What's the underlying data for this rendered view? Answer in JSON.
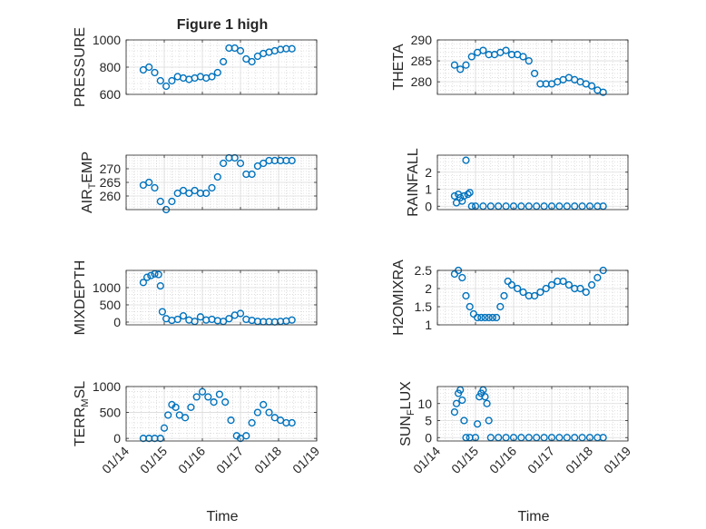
{
  "figure": {
    "title": "Figure 1 high",
    "xlabel": "Time",
    "marker_color": "#0072BD"
  },
  "chart_data": [
    {
      "type": "scatter",
      "ylabel": "PRESSURE",
      "ylabel_main": "PRESSURE",
      "ylim": [
        600,
        1000
      ],
      "yticks": [
        600,
        800,
        1000
      ],
      "xlim": [
        0,
        5
      ],
      "xticks": [
        0,
        1,
        2,
        3,
        4,
        5
      ],
      "xticklabels": [
        "01/14",
        "01/15",
        "01/16",
        "01/17",
        "01/18",
        "01/19"
      ],
      "x": [
        0.45,
        0.6,
        0.75,
        0.9,
        1.05,
        1.2,
        1.35,
        1.5,
        1.65,
        1.8,
        1.95,
        2.1,
        2.25,
        2.4,
        2.55,
        2.7,
        2.85,
        3.0,
        3.15,
        3.3,
        3.45,
        3.6,
        3.75,
        3.9,
        4.05,
        4.2,
        4.35
      ],
      "y": [
        780,
        800,
        760,
        700,
        660,
        700,
        730,
        720,
        710,
        720,
        730,
        720,
        730,
        760,
        840,
        940,
        940,
        920,
        860,
        840,
        880,
        900,
        910,
        920,
        930,
        935,
        935
      ]
    },
    {
      "type": "scatter",
      "ylabel": "THETA",
      "ylabel_main": "THETA",
      "ylim": [
        277,
        290
      ],
      "yticks": [
        280,
        285,
        290
      ],
      "xlim": [
        0,
        5
      ],
      "xticks": [
        0,
        1,
        2,
        3,
        4,
        5
      ],
      "xticklabels": [
        "01/14",
        "01/15",
        "01/16",
        "01/17",
        "01/18",
        "01/19"
      ],
      "x": [
        0.45,
        0.6,
        0.75,
        0.9,
        1.05,
        1.2,
        1.35,
        1.5,
        1.65,
        1.8,
        1.95,
        2.1,
        2.25,
        2.4,
        2.55,
        2.7,
        2.85,
        3.0,
        3.15,
        3.3,
        3.45,
        3.6,
        3.75,
        3.9,
        4.05,
        4.2,
        4.35
      ],
      "y": [
        284,
        283,
        284,
        286,
        287,
        287.5,
        286.5,
        286.5,
        287,
        287.5,
        286.5,
        286.5,
        286,
        285,
        282,
        279.5,
        279.5,
        279.5,
        280,
        280.5,
        281,
        280.5,
        280,
        279.5,
        279,
        278,
        277.5
      ]
    },
    {
      "type": "scatter",
      "ylabel": "AIR_TEMP",
      "ylabel_main": "AIR",
      "ylabel_sub": "T",
      "ylabel_rest": "EMP",
      "ylim": [
        255,
        275
      ],
      "yticks": [
        260,
        265,
        270
      ],
      "xlim": [
        0,
        5
      ],
      "xticks": [
        0,
        1,
        2,
        3,
        4,
        5
      ],
      "xticklabels": [
        "01/14",
        "01/15",
        "01/16",
        "01/17",
        "01/18",
        "01/19"
      ],
      "x": [
        0.45,
        0.6,
        0.75,
        0.9,
        1.05,
        1.2,
        1.35,
        1.5,
        1.65,
        1.8,
        1.95,
        2.1,
        2.25,
        2.4,
        2.55,
        2.7,
        2.85,
        3.0,
        3.15,
        3.3,
        3.45,
        3.6,
        3.75,
        3.9,
        4.05,
        4.2,
        4.35
      ],
      "y": [
        264,
        265,
        263,
        258,
        255,
        258,
        261,
        262,
        261,
        262,
        261,
        261,
        263,
        267,
        272,
        274,
        274,
        272,
        268,
        268,
        271,
        272,
        273,
        273,
        273,
        273,
        273
      ]
    },
    {
      "type": "scatter",
      "ylabel": "RAINFALL",
      "ylabel_main": "RAINFALL",
      "ylim": [
        -0.2,
        3
      ],
      "yticks": [
        0,
        1,
        2
      ],
      "xlim": [
        0,
        5
      ],
      "xticks": [
        0,
        1,
        2,
        3,
        4,
        5
      ],
      "xticklabels": [
        "01/14",
        "01/15",
        "01/16",
        "01/17",
        "01/18",
        "01/19"
      ],
      "x": [
        0.45,
        0.5,
        0.55,
        0.6,
        0.65,
        0.7,
        0.75,
        0.8,
        0.85,
        0.9,
        1.0,
        1.2,
        1.4,
        1.6,
        1.8,
        2.0,
        2.2,
        2.4,
        2.6,
        2.8,
        3.0,
        3.2,
        3.4,
        3.6,
        3.8,
        4.0,
        4.2,
        4.35
      ],
      "y": [
        0.6,
        0.2,
        0.7,
        0.5,
        0.3,
        0.6,
        2.7,
        0.7,
        0.8,
        0,
        0,
        0,
        0,
        0,
        0,
        0,
        0,
        0,
        0,
        0,
        0,
        0,
        0,
        0,
        0,
        0,
        0,
        0
      ]
    },
    {
      "type": "scatter",
      "ylabel": "MIXDEPTH",
      "ylabel_main": "MIXDEPTH",
      "ylim": [
        -80,
        1500
      ],
      "yticks": [
        0,
        500,
        1000
      ],
      "xlim": [
        0,
        5
      ],
      "xticks": [
        0,
        1,
        2,
        3,
        4,
        5
      ],
      "xticklabels": [
        "01/14",
        "01/15",
        "01/16",
        "01/17",
        "01/18",
        "01/19"
      ],
      "x": [
        0.45,
        0.55,
        0.65,
        0.75,
        0.85,
        0.9,
        0.95,
        1.05,
        1.2,
        1.35,
        1.5,
        1.65,
        1.8,
        1.95,
        2.1,
        2.25,
        2.4,
        2.55,
        2.7,
        2.85,
        3.0,
        3.15,
        3.3,
        3.45,
        3.6,
        3.75,
        3.9,
        4.05,
        4.2,
        4.35
      ],
      "y": [
        1150,
        1300,
        1350,
        1400,
        1380,
        1050,
        300,
        100,
        50,
        80,
        180,
        60,
        20,
        150,
        60,
        80,
        40,
        20,
        100,
        200,
        250,
        80,
        50,
        20,
        10,
        10,
        5,
        20,
        30,
        60
      ]
    },
    {
      "type": "scatter",
      "ylabel": "H2OMIXRA",
      "ylabel_main": "H2OMIXRA",
      "ylim": [
        1,
        2.5
      ],
      "yticks": [
        1,
        1.5,
        2,
        2.5
      ],
      "xlim": [
        0,
        5
      ],
      "xticks": [
        0,
        1,
        2,
        3,
        4,
        5
      ],
      "xticklabels": [
        "01/14",
        "01/15",
        "01/16",
        "01/17",
        "01/18",
        "01/19"
      ],
      "x": [
        0.45,
        0.55,
        0.65,
        0.75,
        0.85,
        0.95,
        1.05,
        1.15,
        1.25,
        1.35,
        1.45,
        1.55,
        1.65,
        1.75,
        1.85,
        1.95,
        2.1,
        2.25,
        2.4,
        2.55,
        2.7,
        2.85,
        3.0,
        3.15,
        3.3,
        3.45,
        3.6,
        3.75,
        3.9,
        4.05,
        4.2,
        4.35
      ],
      "y": [
        2.4,
        2.5,
        2.3,
        1.8,
        1.5,
        1.3,
        1.2,
        1.2,
        1.2,
        1.2,
        1.2,
        1.2,
        1.5,
        1.8,
        2.2,
        2.1,
        2.0,
        1.9,
        1.8,
        1.8,
        1.9,
        2.0,
        2.1,
        2.2,
        2.2,
        2.1,
        2.0,
        2.0,
        1.9,
        2.1,
        2.3,
        2.5
      ]
    },
    {
      "type": "scatter",
      "ylabel": "TERR_MSL",
      "ylabel_main": "TERR",
      "ylabel_sub": "M",
      "ylabel_rest": "SL",
      "ylim": [
        -50,
        1000
      ],
      "yticks": [
        0,
        500,
        1000
      ],
      "xlim": [
        0,
        5
      ],
      "xticks": [
        0,
        1,
        2,
        3,
        4,
        5
      ],
      "xticklabels": [
        "01/14",
        "01/15",
        "01/16",
        "01/17",
        "01/18",
        "01/19"
      ],
      "x": [
        0.45,
        0.6,
        0.75,
        0.9,
        1.0,
        1.1,
        1.2,
        1.3,
        1.4,
        1.55,
        1.7,
        1.85,
        2.0,
        2.15,
        2.3,
        2.45,
        2.6,
        2.75,
        2.9,
        3.0,
        3.15,
        3.3,
        3.45,
        3.6,
        3.75,
        3.9,
        4.05,
        4.2,
        4.35
      ],
      "y": [
        0,
        0,
        0,
        0,
        200,
        450,
        650,
        600,
        450,
        400,
        600,
        800,
        900,
        800,
        700,
        850,
        700,
        350,
        50,
        0,
        50,
        300,
        500,
        650,
        500,
        400,
        350,
        300,
        300
      ]
    },
    {
      "type": "scatter",
      "ylabel": "SUN_FLUX",
      "ylabel_main": "SUN",
      "ylabel_sub": "F",
      "ylabel_rest": "LUX",
      "ylim": [
        -1,
        15
      ],
      "yticks": [
        0,
        5,
        10
      ],
      "xlim": [
        0,
        5
      ],
      "xticks": [
        0,
        1,
        2,
        3,
        4,
        5
      ],
      "xticklabels": [
        "01/14",
        "01/15",
        "01/16",
        "01/17",
        "01/18",
        "01/19"
      ],
      "x": [
        0.45,
        0.5,
        0.55,
        0.6,
        0.65,
        0.7,
        0.75,
        0.85,
        1.0,
        1.05,
        1.1,
        1.15,
        1.2,
        1.25,
        1.3,
        1.35,
        1.4,
        1.6,
        1.8,
        2.0,
        2.2,
        2.4,
        2.6,
        2.8,
        3.0,
        3.2,
        3.4,
        3.6,
        3.8,
        4.0,
        4.2,
        4.35
      ],
      "y": [
        7.5,
        10,
        13,
        14,
        11,
        5,
        0,
        0,
        0,
        4,
        12,
        13,
        14,
        12,
        10,
        5,
        0,
        0,
        0,
        0,
        0,
        0,
        0,
        0,
        0,
        0,
        0,
        0,
        0,
        0,
        0,
        0
      ]
    }
  ]
}
